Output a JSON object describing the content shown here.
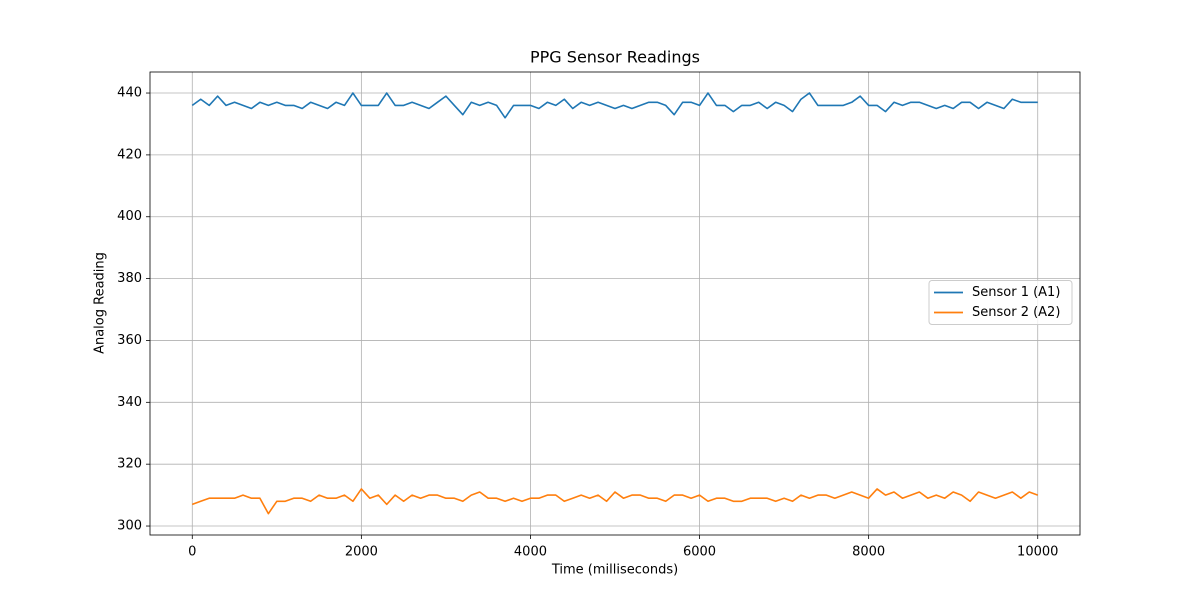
{
  "chart_data": {
    "type": "line",
    "title": "PPG Sensor Readings",
    "xlabel": "Time (milliseconds)",
    "ylabel": "Analog Reading",
    "x": [
      0,
      100,
      200,
      300,
      400,
      500,
      600,
      700,
      800,
      900,
      1000,
      1100,
      1200,
      1300,
      1400,
      1500,
      1600,
      1700,
      1800,
      1900,
      2000,
      2100,
      2200,
      2300,
      2400,
      2500,
      2600,
      2700,
      2800,
      2900,
      3000,
      3100,
      3200,
      3300,
      3400,
      3500,
      3600,
      3700,
      3800,
      3900,
      4000,
      4100,
      4200,
      4300,
      4400,
      4500,
      4600,
      4700,
      4800,
      4900,
      5000,
      5100,
      5200,
      5300,
      5400,
      5500,
      5600,
      5700,
      5800,
      5900,
      6000,
      6100,
      6200,
      6300,
      6400,
      6500,
      6600,
      6700,
      6800,
      6900,
      7000,
      7100,
      7200,
      7300,
      7400,
      7500,
      7600,
      7700,
      7800,
      7900,
      8000,
      8100,
      8200,
      8300,
      8400,
      8500,
      8600,
      8700,
      8800,
      8900,
      9000,
      9100,
      9200,
      9300,
      9400,
      9500,
      9600,
      9700,
      9800,
      9900,
      10000
    ],
    "series": [
      {
        "name": "Sensor 1 (A1)",
        "color": "#1f77b4",
        "values": [
          436,
          438,
          436,
          439,
          436,
          437,
          436,
          435,
          437,
          436,
          437,
          436,
          436,
          435,
          437,
          436,
          435,
          437,
          436,
          440,
          436,
          436,
          436,
          440,
          436,
          436,
          437,
          436,
          435,
          437,
          439,
          436,
          433,
          437,
          436,
          437,
          436,
          432,
          436,
          436,
          436,
          435,
          437,
          436,
          438,
          435,
          437,
          436,
          437,
          436,
          435,
          436,
          435,
          436,
          437,
          437,
          436,
          433,
          437,
          437,
          436,
          440,
          436,
          436,
          434,
          436,
          436,
          437,
          435,
          437,
          436,
          434,
          438,
          440,
          436,
          436,
          436,
          436,
          437,
          439,
          436,
          436,
          434,
          437,
          436,
          437,
          437,
          436,
          435,
          436,
          435,
          437,
          437,
          435,
          437,
          436,
          435,
          438,
          437,
          437,
          437
        ]
      },
      {
        "name": "Sensor 2 (A2)",
        "color": "#ff7f0e",
        "values": [
          307,
          308,
          309,
          309,
          309,
          309,
          310,
          309,
          309,
          304,
          308,
          308,
          309,
          309,
          308,
          310,
          309,
          309,
          310,
          308,
          312,
          309,
          310,
          307,
          310,
          308,
          310,
          309,
          310,
          310,
          309,
          309,
          308,
          310,
          311,
          309,
          309,
          308,
          309,
          308,
          309,
          309,
          310,
          310,
          308,
          309,
          310,
          309,
          310,
          308,
          311,
          309,
          310,
          310,
          309,
          309,
          308,
          310,
          310,
          309,
          310,
          308,
          309,
          309,
          308,
          308,
          309,
          309,
          309,
          308,
          309,
          308,
          310,
          309,
          310,
          310,
          309,
          310,
          311,
          310,
          309,
          312,
          310,
          311,
          309,
          310,
          311,
          309,
          310,
          309,
          311,
          310,
          308,
          311,
          310,
          309,
          310,
          311,
          309,
          311,
          310
        ]
      }
    ],
    "xlim": [
      -500,
      10500
    ],
    "ylim": [
      297.1,
      446.8
    ],
    "xticks": [
      0,
      2000,
      4000,
      6000,
      8000,
      10000
    ],
    "yticks": [
      300,
      320,
      340,
      360,
      380,
      400,
      420,
      440
    ],
    "grid": true,
    "legend": "center right"
  }
}
